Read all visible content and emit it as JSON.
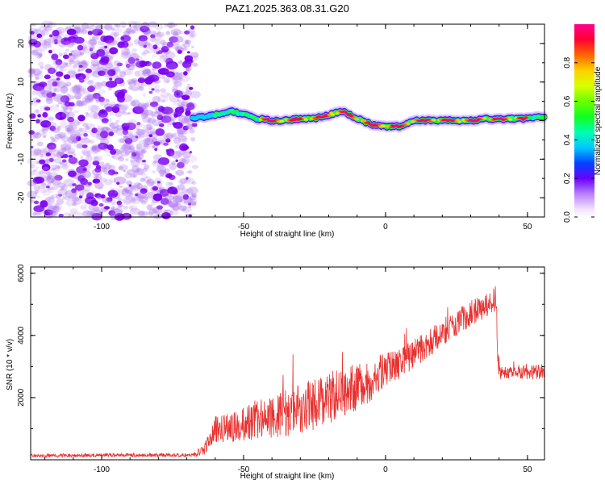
{
  "title": "PAZ1.2025.363.08.31.G20",
  "chart_data": [
    {
      "type": "heatmap",
      "xlabel": "Height of straight line (km)",
      "ylabel": "Frequency (Hz)",
      "xlim": [
        -125,
        56
      ],
      "ylim": [
        -25,
        25
      ],
      "x_ticks": [
        -100,
        -50,
        0,
        50
      ],
      "x_tick_labels": [
        "-100",
        "-50",
        "0",
        "50"
      ],
      "y_ticks": [
        -20,
        -10,
        0,
        10,
        20
      ],
      "y_tick_labels": [
        "-20",
        "-10",
        "0",
        "10",
        "20"
      ],
      "noise_region_x": [
        -125,
        -67
      ],
      "signal_track": {
        "x": [
          -68,
          -60,
          -55,
          -50,
          -45,
          -40,
          -35,
          -30,
          -25,
          -20,
          -15,
          -10,
          -5,
          0,
          5,
          10,
          15,
          20,
          25,
          30,
          35,
          40,
          45,
          50,
          56
        ],
        "frequency": [
          0.5,
          1.5,
          2.5,
          1.5,
          0.5,
          0,
          0,
          0.5,
          0.5,
          1.5,
          2.5,
          0.5,
          -1,
          -1.5,
          -1.5,
          0,
          0,
          0,
          0,
          0,
          0.5,
          0.3,
          0.5,
          0.5,
          1.0
        ]
      },
      "colorbar": {
        "label": "Normalized spectral amplitude",
        "ticks": [
          0.0,
          0.2,
          0.4,
          0.6,
          0.8
        ],
        "tick_labels": [
          "0.0",
          "0.2",
          "0.4",
          "0.6",
          "0.8"
        ],
        "range": [
          0,
          1
        ]
      }
    },
    {
      "type": "line",
      "xlabel": "Height of straight line (km)",
      "ylabel": "SNR (10 * v/v)",
      "xlim": [
        -125,
        56
      ],
      "ylim": [
        0,
        6200
      ],
      "x_ticks": [
        -100,
        -50,
        0,
        50
      ],
      "x_tick_labels": [
        "-100",
        "-50",
        "0",
        "50"
      ],
      "y_ticks": [
        2000,
        4000,
        6000
      ],
      "y_tick_labels": [
        "2000",
        "4000",
        "6000"
      ],
      "series": [
        {
          "name": "SNR",
          "color": "#e8312f",
          "x": [
            -125,
            -110,
            -95,
            -80,
            -68,
            -64,
            -62,
            -60,
            -55,
            -50,
            -45,
            -40,
            -35,
            -30,
            -25,
            -20,
            -15,
            -10,
            -5,
            0,
            5,
            10,
            15,
            20,
            25,
            30,
            35,
            38,
            39,
            39.5,
            40,
            45,
            50,
            56
          ],
          "mean": [
            130,
            140,
            150,
            150,
            150,
            300,
            650,
            1000,
            1000,
            1150,
            1300,
            1300,
            1500,
            1650,
            1750,
            2000,
            2200,
            2350,
            2500,
            2900,
            3100,
            3400,
            3700,
            4100,
            4400,
            4700,
            4900,
            5100,
            5200,
            3400,
            2800,
            2850,
            2800,
            2850
          ],
          "amplitude": [
            60,
            60,
            60,
            60,
            60,
            200,
            300,
            420,
            480,
            600,
            650,
            700,
            750,
            800,
            850,
            850,
            800,
            750,
            650,
            550,
            520,
            480,
            450,
            430,
            420,
            420,
            420,
            420,
            420,
            250,
            220,
            220,
            220,
            250
          ]
        }
      ]
    }
  ],
  "colors": {
    "line": "#e8312f",
    "noise": "#8a2be2",
    "axis": "#000000"
  }
}
